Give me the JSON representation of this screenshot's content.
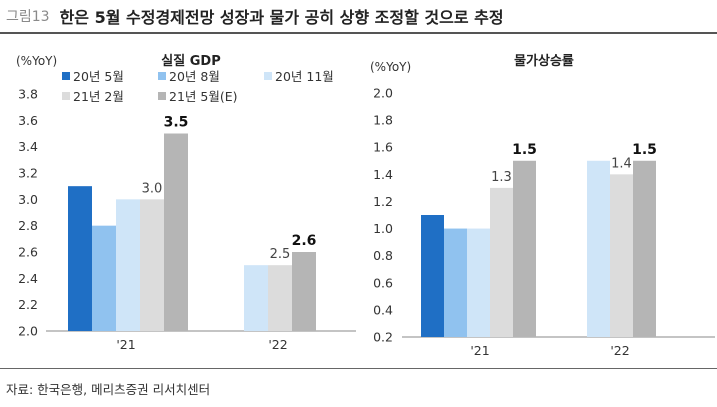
{
  "header": {
    "figure_label": "그림13",
    "title": "한은 5월 수정경제전망 성장과 물가 공히 상향 조정할 것으로 추정"
  },
  "footer": {
    "source": "자료: 한국은행, 메리츠증권 리서치센터"
  },
  "colors": {
    "20년 5월": "#1f6fc5",
    "20년 8월": "#90c2ef",
    "20년 11월": "#cfe5f8",
    "21년 2월": "#dcdcdc",
    "21년 5월(E)": "#b5b5b5"
  },
  "chart_data": [
    {
      "type": "bar",
      "title": "실질 GDP",
      "ylabel": "(%YoY)",
      "categories": [
        "'21",
        "'22"
      ],
      "ylim": [
        2.0,
        3.8
      ],
      "yticks": [
        "2.0",
        "2.2",
        "2.4",
        "2.6",
        "2.8",
        "3.0",
        "3.2",
        "3.4",
        "3.6",
        "3.8"
      ],
      "legend": "top",
      "grid": false,
      "series": [
        {
          "name": "20년 5월",
          "values": [
            3.1,
            null
          ]
        },
        {
          "name": "20년 8월",
          "values": [
            2.8,
            null
          ]
        },
        {
          "name": "20년 11월",
          "values": [
            3.0,
            2.5
          ]
        },
        {
          "name": "21년 2월",
          "values": [
            3.0,
            2.5
          ]
        },
        {
          "name": "21년 5월(E)",
          "values": [
            3.5,
            2.6
          ]
        }
      ],
      "data_labels": [
        {
          "category": 0,
          "series": 3,
          "text": "3.0",
          "bold": false
        },
        {
          "category": 0,
          "series": 4,
          "text": "3.5",
          "bold": true
        },
        {
          "category": 1,
          "series": 3,
          "text": "2.5",
          "bold": false
        },
        {
          "category": 1,
          "series": 4,
          "text": "2.6",
          "bold": true
        }
      ]
    },
    {
      "type": "bar",
      "title": "물가상승률",
      "ylabel": "(%YoY)",
      "categories": [
        "'21",
        "'22"
      ],
      "ylim": [
        0.2,
        2.0
      ],
      "yticks": [
        "0.2",
        "0.4",
        "0.6",
        "0.8",
        "1.0",
        "1.2",
        "1.4",
        "1.6",
        "1.8",
        "2.0"
      ],
      "grid": false,
      "series": [
        {
          "name": "20년 5월",
          "values": [
            1.1,
            null
          ]
        },
        {
          "name": "20년 8월",
          "values": [
            1.0,
            null
          ]
        },
        {
          "name": "20년 11월",
          "values": [
            1.0,
            1.5
          ]
        },
        {
          "name": "21년 2월",
          "values": [
            1.3,
            1.4
          ]
        },
        {
          "name": "21년 5월(E)",
          "values": [
            1.5,
            1.5
          ]
        }
      ],
      "data_labels": [
        {
          "category": 0,
          "series": 3,
          "text": "1.3",
          "bold": false
        },
        {
          "category": 0,
          "series": 4,
          "text": "1.5",
          "bold": true
        },
        {
          "category": 1,
          "series": 3,
          "text": "1.4",
          "bold": false
        },
        {
          "category": 1,
          "series": 4,
          "text": "1.5",
          "bold": true
        }
      ]
    }
  ]
}
